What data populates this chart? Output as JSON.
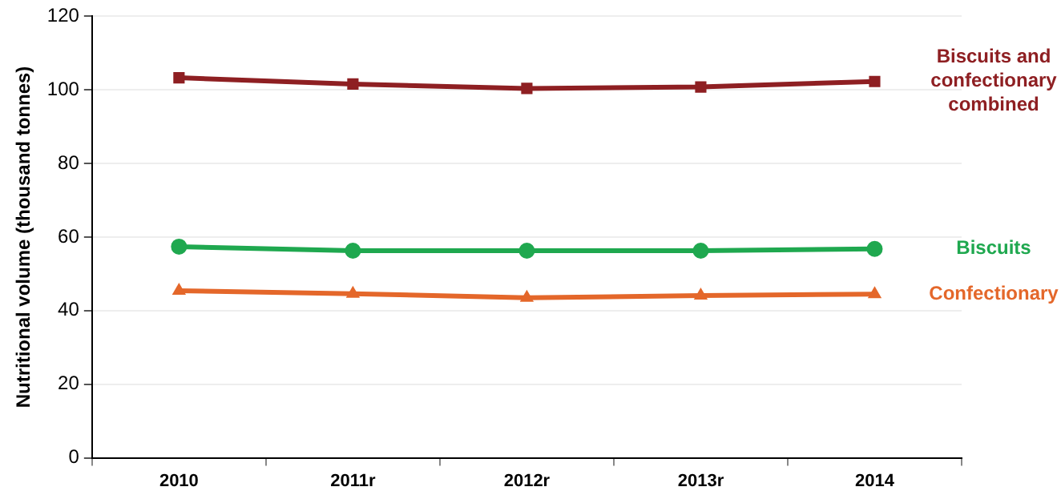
{
  "chart_data": {
    "type": "line",
    "ylabel": "Nutritional volume (thousand tonnes)",
    "categories": [
      "2010",
      "2011r",
      "2012r",
      "2013r",
      "2014"
    ],
    "series": [
      {
        "name": "Biscuits and confectionary combined",
        "color": "#8e1f22",
        "marker": "square",
        "values": [
          103.3,
          101.6,
          100.4,
          100.8,
          102.3
        ]
      },
      {
        "name": "Biscuits",
        "color": "#1fa84f",
        "marker": "circle",
        "values": [
          57.4,
          56.3,
          56.3,
          56.3,
          56.8
        ]
      },
      {
        "name": "Confectionary",
        "color": "#e4672a",
        "marker": "triangle",
        "values": [
          45.4,
          44.6,
          43.5,
          44.1,
          44.5
        ]
      }
    ],
    "ylim": [
      0,
      120
    ],
    "yticks": [
      0,
      20,
      40,
      60,
      80,
      100,
      120
    ],
    "grid": "y",
    "legend": false
  }
}
